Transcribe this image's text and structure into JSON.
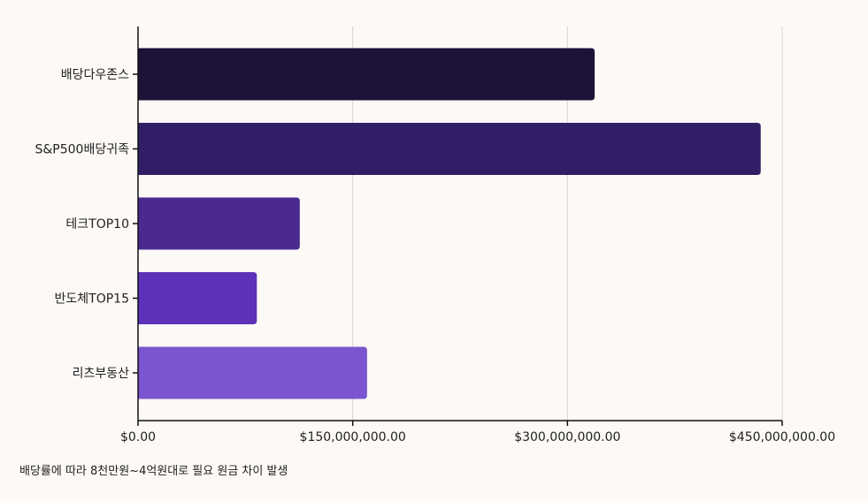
{
  "chart_data": {
    "type": "bar",
    "orientation": "horizontal",
    "categories": [
      "배당다우존스",
      "S&P500배당귀족",
      "테크TOP10",
      "반도체TOP15",
      "리츠부동산"
    ],
    "values": [
      319000000,
      435000000,
      113000000,
      83000000,
      160000000
    ],
    "colors": [
      "#1e1238",
      "#321e66",
      "#4b2a8f",
      "#5b32b8",
      "#7b55cf"
    ],
    "xlim": [
      0,
      450000000
    ],
    "xticks": [
      0,
      150000000,
      300000000,
      450000000
    ],
    "xtick_labels": [
      "$0.00",
      "$150,000,000.00",
      "$300,000,000.00",
      "$450,000,000.00"
    ],
    "grid": true,
    "title": "",
    "xlabel": "",
    "ylabel": ""
  },
  "caption": "배당률에 따라 8천만원~4억원대로 필요 원금 차이 발생"
}
